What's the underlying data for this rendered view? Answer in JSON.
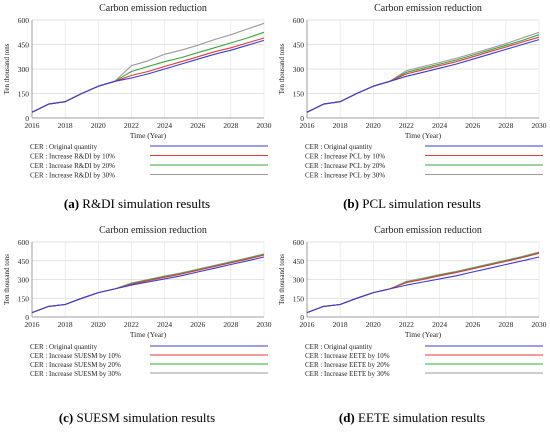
{
  "chart_data": [
    {
      "type": "line",
      "title": "Carbon emission reduction",
      "xlabel": "Time (Year)",
      "ylabel": "Ten thousand tons",
      "xlim": [
        2016,
        2030
      ],
      "ylim": [
        0,
        600
      ],
      "xticks": [
        2016,
        2018,
        2020,
        2022,
        2024,
        2026,
        2028,
        2030
      ],
      "yticks": [
        0,
        150,
        300,
        450,
        600
      ],
      "x": [
        2016,
        2017,
        2018,
        2019,
        2020,
        2021,
        2022,
        2023,
        2024,
        2025,
        2026,
        2027,
        2028,
        2029,
        2030
      ],
      "series": [
        {
          "name": "CER : Original quantity",
          "color": "#3b3bd6",
          "values": [
            35,
            85,
            100,
            150,
            195,
            225,
            245,
            270,
            300,
            330,
            360,
            390,
            415,
            445,
            475
          ]
        },
        {
          "name": "CER : Increase R&DI by 10%",
          "color": "#e03a3a",
          "values": [
            35,
            85,
            100,
            150,
            195,
            225,
            260,
            285,
            315,
            345,
            375,
            405,
            430,
            460,
            490
          ]
        },
        {
          "name": "CER : Increase R&DI by 20%",
          "color": "#3aa43a",
          "values": [
            35,
            85,
            100,
            150,
            195,
            225,
            285,
            315,
            345,
            370,
            400,
            430,
            460,
            490,
            525
          ]
        },
        {
          "name": "CER : Increase R&DI by 30%",
          "color": "#9a9a9a",
          "values": [
            35,
            85,
            100,
            150,
            195,
            225,
            320,
            350,
            390,
            415,
            445,
            480,
            510,
            545,
            580
          ]
        }
      ]
    },
    {
      "type": "line",
      "title": "Carbon emission reduction",
      "xlabel": "Time (Year)",
      "ylabel": "Ten thousand tons",
      "xlim": [
        2016,
        2030
      ],
      "ylim": [
        0,
        600
      ],
      "xticks": [
        2016,
        2018,
        2020,
        2022,
        2024,
        2026,
        2028,
        2030
      ],
      "yticks": [
        0,
        150,
        300,
        450,
        600
      ],
      "x": [
        2016,
        2017,
        2018,
        2019,
        2020,
        2021,
        2022,
        2023,
        2024,
        2025,
        2026,
        2027,
        2028,
        2029,
        2030
      ],
      "series": [
        {
          "name": "CER : Original quantity",
          "color": "#3b3bd6",
          "values": [
            35,
            85,
            100,
            150,
            195,
            225,
            255,
            280,
            305,
            330,
            360,
            390,
            420,
            450,
            480
          ]
        },
        {
          "name": "CER : Increase PCL by 10%",
          "color": "#e03a3a",
          "values": [
            35,
            85,
            100,
            150,
            195,
            225,
            270,
            295,
            320,
            345,
            375,
            405,
            435,
            465,
            495
          ]
        },
        {
          "name": "CER : Increase PCL by 20%",
          "color": "#3aa43a",
          "values": [
            35,
            85,
            100,
            150,
            195,
            225,
            280,
            305,
            330,
            355,
            385,
            415,
            445,
            475,
            510
          ]
        },
        {
          "name": "CER : Increase PCL by 30%",
          "color": "#9a9a9a",
          "values": [
            35,
            85,
            100,
            150,
            195,
            225,
            290,
            315,
            340,
            365,
            395,
            425,
            455,
            490,
            525
          ]
        }
      ]
    },
    {
      "type": "line",
      "title": "Carbon emission reduction",
      "xlabel": "Time (Year)",
      "ylabel": "Ten thousand tons",
      "xlim": [
        2016,
        2030
      ],
      "ylim": [
        0,
        600
      ],
      "xticks": [
        2016,
        2018,
        2020,
        2022,
        2024,
        2026,
        2028,
        2030
      ],
      "yticks": [
        0,
        150,
        300,
        450,
        600
      ],
      "x": [
        2016,
        2017,
        2018,
        2019,
        2020,
        2021,
        2022,
        2023,
        2024,
        2025,
        2026,
        2027,
        2028,
        2029,
        2030
      ],
      "series": [
        {
          "name": "CER : Original quantity",
          "color": "#3b3bd6",
          "values": [
            35,
            85,
            100,
            150,
            195,
            225,
            255,
            280,
            305,
            330,
            360,
            390,
            420,
            450,
            480
          ]
        },
        {
          "name": "CER : Increase SUESM by 10%",
          "color": "#e03a3a",
          "values": [
            35,
            85,
            100,
            150,
            195,
            225,
            262,
            290,
            318,
            343,
            373,
            403,
            433,
            463,
            495
          ]
        },
        {
          "name": "CER : Increase SUESM by 20%",
          "color": "#3aa43a",
          "values": [
            35,
            85,
            100,
            150,
            195,
            225,
            267,
            295,
            323,
            348,
            378,
            408,
            438,
            468,
            500
          ]
        },
        {
          "name": "CER : Increase SUESM by 30%",
          "color": "#9a9a9a",
          "values": [
            35,
            85,
            100,
            150,
            195,
            225,
            272,
            300,
            328,
            353,
            383,
            413,
            443,
            473,
            505
          ]
        }
      ]
    },
    {
      "type": "line",
      "title": "Carbon emission reduction",
      "xlabel": "Time (Year)",
      "ylabel": "Ten thousand tons",
      "xlim": [
        2016,
        2030
      ],
      "ylim": [
        0,
        600
      ],
      "xticks": [
        2016,
        2018,
        2020,
        2022,
        2024,
        2026,
        2028,
        2030
      ],
      "yticks": [
        0,
        150,
        300,
        450,
        600
      ],
      "x": [
        2016,
        2017,
        2018,
        2019,
        2020,
        2021,
        2022,
        2023,
        2024,
        2025,
        2026,
        2027,
        2028,
        2029,
        2030
      ],
      "series": [
        {
          "name": "CER : Original quantity",
          "color": "#3b3bd6",
          "values": [
            35,
            85,
            100,
            150,
            195,
            225,
            255,
            280,
            305,
            330,
            360,
            390,
            420,
            450,
            480
          ]
        },
        {
          "name": "CER : Increase EETE by 10%",
          "color": "#e03a3a",
          "values": [
            35,
            85,
            100,
            150,
            195,
            225,
            275,
            300,
            330,
            355,
            385,
            415,
            445,
            475,
            510
          ]
        },
        {
          "name": "CER : Increase EETE by 20%",
          "color": "#3aa43a",
          "values": [
            35,
            85,
            100,
            150,
            195,
            225,
            280,
            305,
            335,
            360,
            390,
            420,
            450,
            480,
            515
          ]
        },
        {
          "name": "CER : Increase EETE by 30%",
          "color": "#9a9a9a",
          "values": [
            35,
            85,
            100,
            150,
            195,
            225,
            285,
            310,
            340,
            365,
            395,
            425,
            455,
            485,
            520
          ]
        }
      ]
    }
  ],
  "captions": [
    {
      "label": "(a)",
      "text": "R&DI simulation results"
    },
    {
      "label": "(b)",
      "text": "PCL simulation results"
    },
    {
      "label": "(c)",
      "text": "SUESM simulation results"
    },
    {
      "label": "(d)",
      "text": "EETE simulation results"
    }
  ]
}
